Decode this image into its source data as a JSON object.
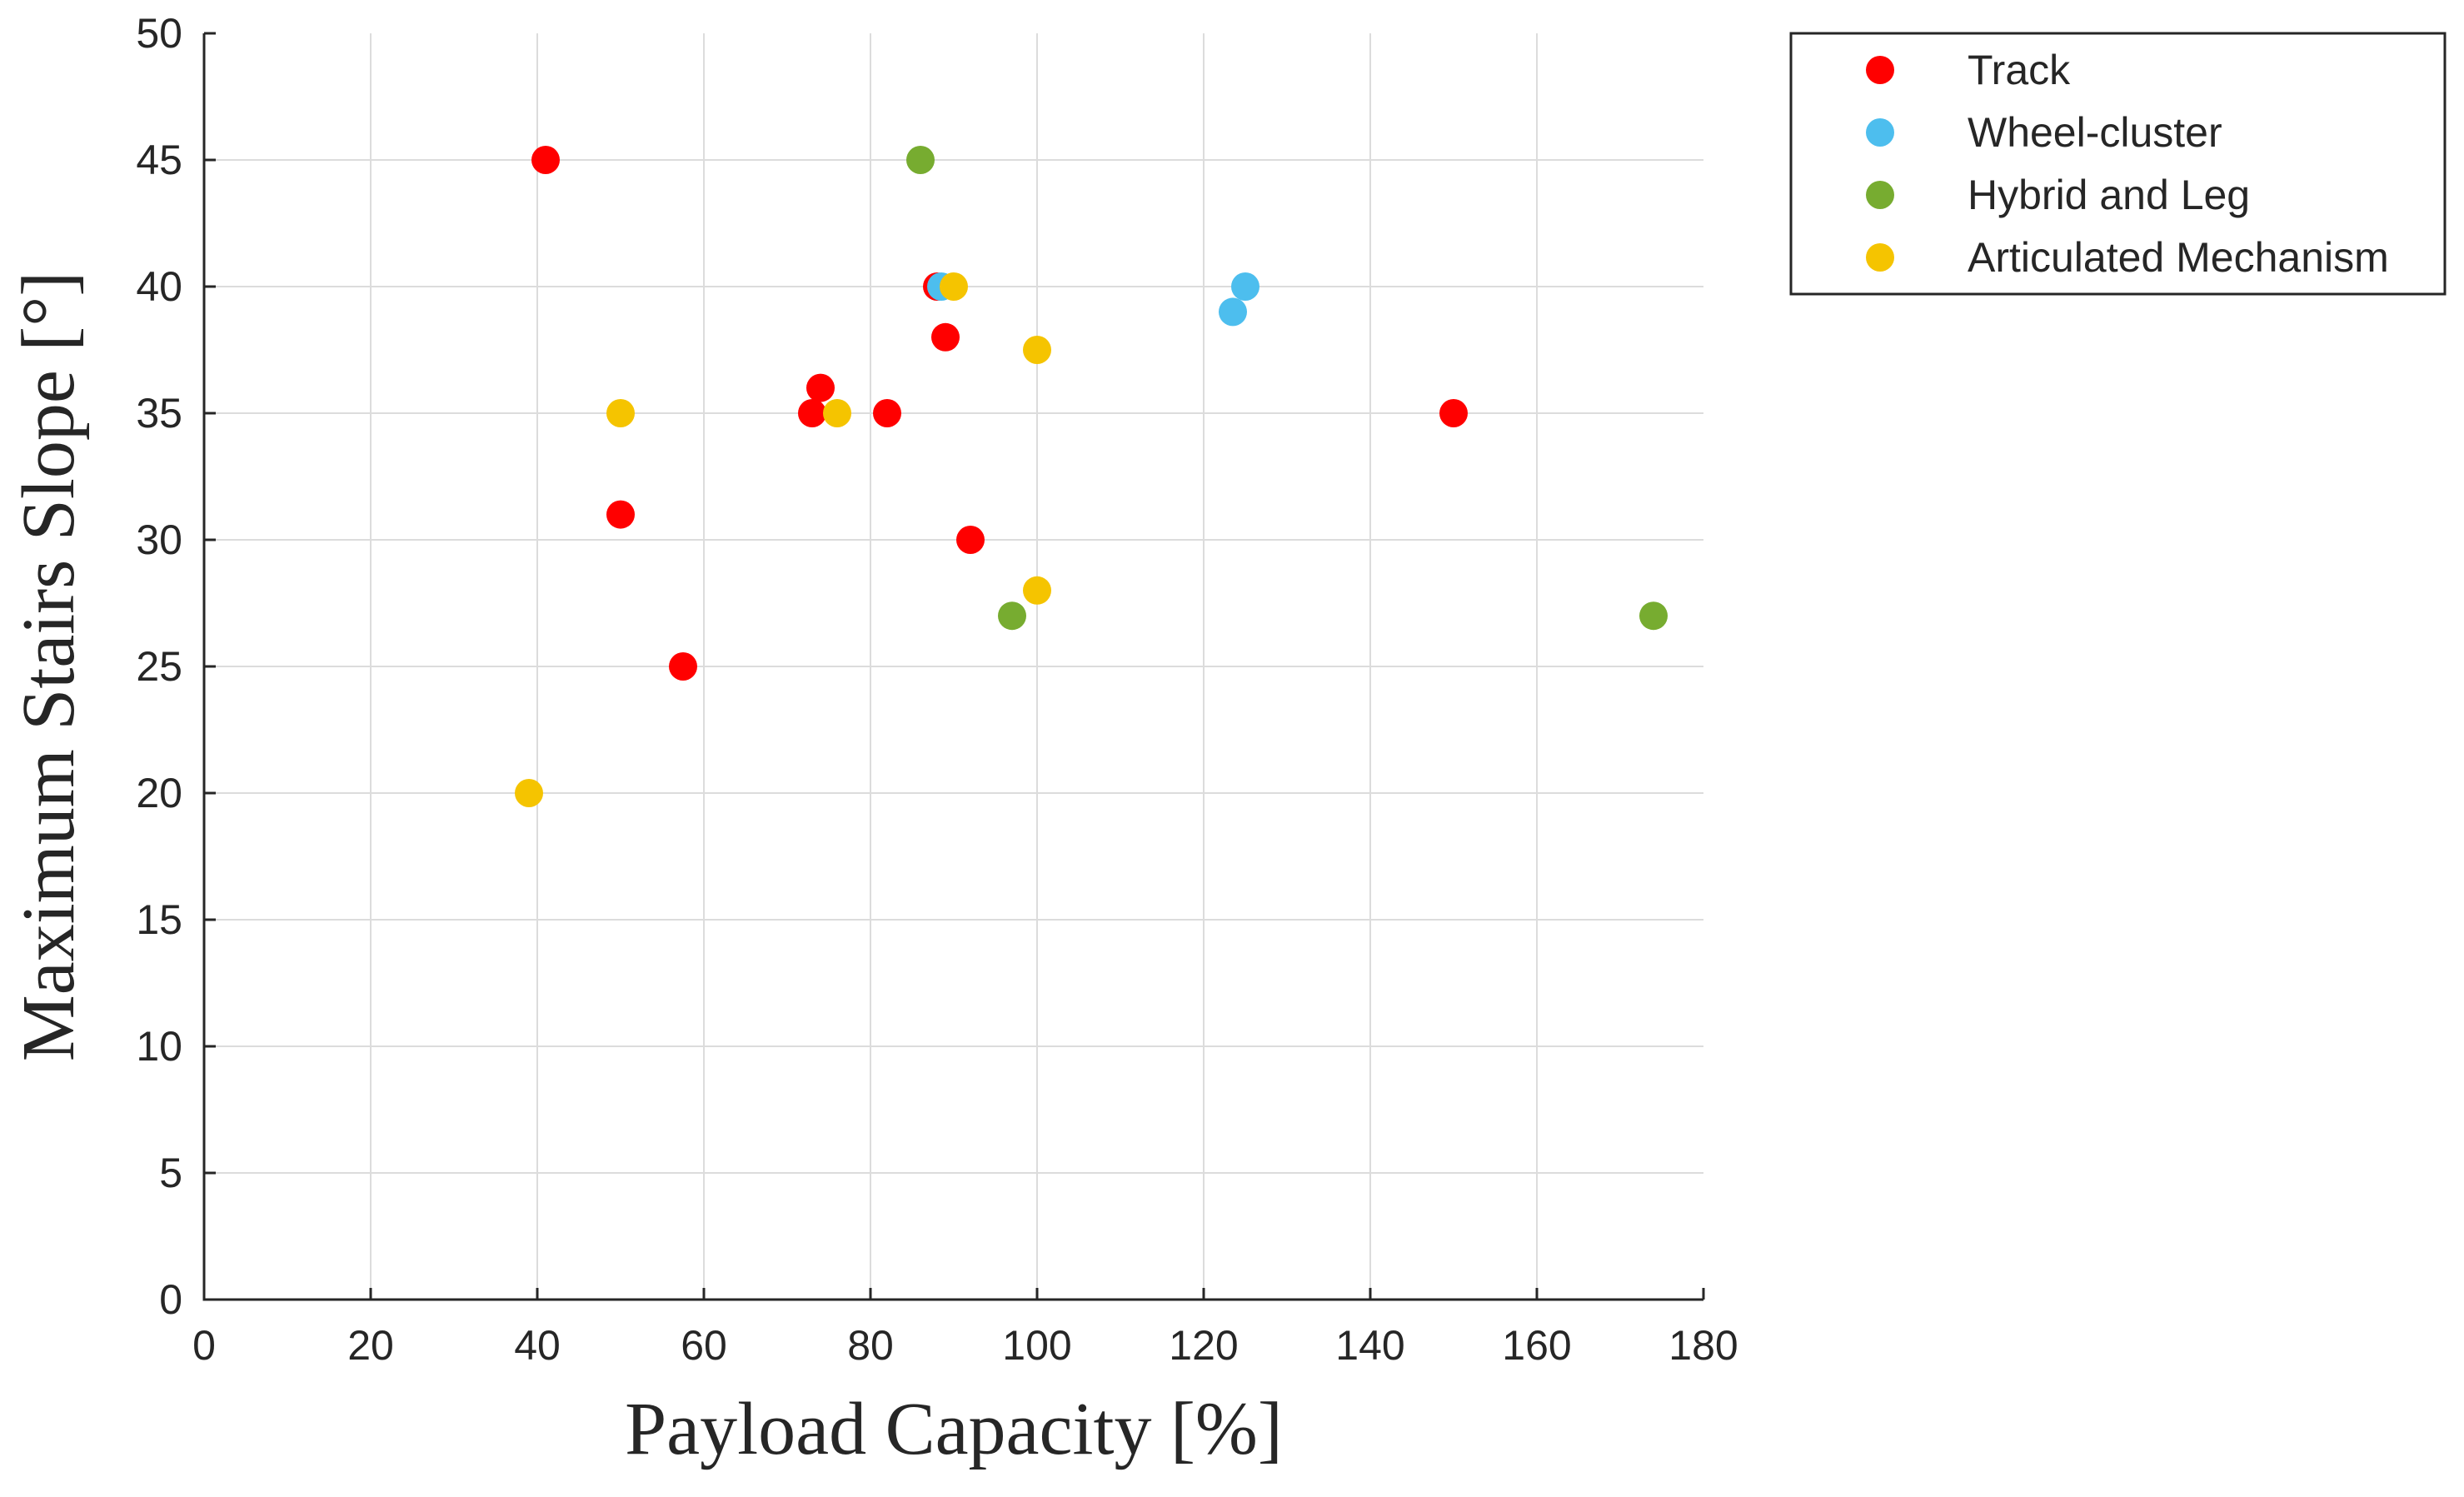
{
  "chart_data": {
    "type": "scatter",
    "title": "",
    "xlabel": "Payload Capacity [%]",
    "ylabel": "Maximum Stairs Slope [°]",
    "xlim": [
      0,
      180
    ],
    "ylim": [
      0,
      50
    ],
    "xticks": [
      0,
      20,
      40,
      60,
      80,
      100,
      120,
      140,
      160,
      180
    ],
    "yticks": [
      0,
      5,
      10,
      15,
      20,
      25,
      30,
      35,
      40,
      45,
      50
    ],
    "grid": true,
    "legend_position": "outside-top-right",
    "series": [
      {
        "name": "Track",
        "color": "#ff0000",
        "points": [
          [
            41,
            45
          ],
          [
            88,
            40
          ],
          [
            89,
            38
          ],
          [
            74,
            36
          ],
          [
            73,
            35
          ],
          [
            82,
            35
          ],
          [
            50,
            31
          ],
          [
            92,
            30
          ],
          [
            57.5,
            25
          ],
          [
            150,
            35
          ]
        ]
      },
      {
        "name": "Wheel-cluster",
        "color": "#4dbeee",
        "points": [
          [
            88.5,
            40
          ],
          [
            125,
            40
          ],
          [
            123.5,
            39
          ]
        ]
      },
      {
        "name": "Hybrid and Leg",
        "color": "#77ac30",
        "points": [
          [
            86,
            45
          ],
          [
            97,
            27
          ],
          [
            174,
            27
          ]
        ]
      },
      {
        "name": "Articulated Mechanism",
        "color": "#f5c400",
        "points": [
          [
            90,
            40
          ],
          [
            100,
            37.5
          ],
          [
            50,
            35
          ],
          [
            76,
            35
          ],
          [
            100,
            28
          ],
          [
            39,
            20
          ]
        ]
      }
    ]
  }
}
